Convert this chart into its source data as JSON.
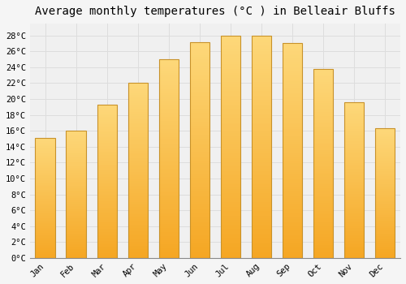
{
  "title": "Average monthly temperatures (°C ) in Belleair Bluffs",
  "months": [
    "Jan",
    "Feb",
    "Mar",
    "Apr",
    "May",
    "Jun",
    "Jul",
    "Aug",
    "Sep",
    "Oct",
    "Nov",
    "Dec"
  ],
  "values": [
    15.1,
    16.0,
    19.3,
    22.1,
    25.0,
    27.2,
    28.0,
    28.0,
    27.1,
    23.8,
    19.6,
    16.3
  ],
  "bar_color_top": "#FDD87A",
  "bar_color_bottom": "#F5A623",
  "bar_edge_color": "#C8922A",
  "background_color": "#F5F5F5",
  "plot_bg_color": "#F0F0F0",
  "grid_color": "#DDDDDD",
  "ytick_labels": [
    "0°C",
    "2°C",
    "4°C",
    "6°C",
    "8°C",
    "10°C",
    "12°C",
    "14°C",
    "16°C",
    "18°C",
    "20°C",
    "22°C",
    "24°C",
    "26°C",
    "28°C"
  ],
  "ytick_values": [
    0,
    2,
    4,
    6,
    8,
    10,
    12,
    14,
    16,
    18,
    20,
    22,
    24,
    26,
    28
  ],
  "ylim": [
    0,
    29.5
  ],
  "title_fontsize": 10,
  "tick_fontsize": 7.5,
  "font_family": "monospace"
}
